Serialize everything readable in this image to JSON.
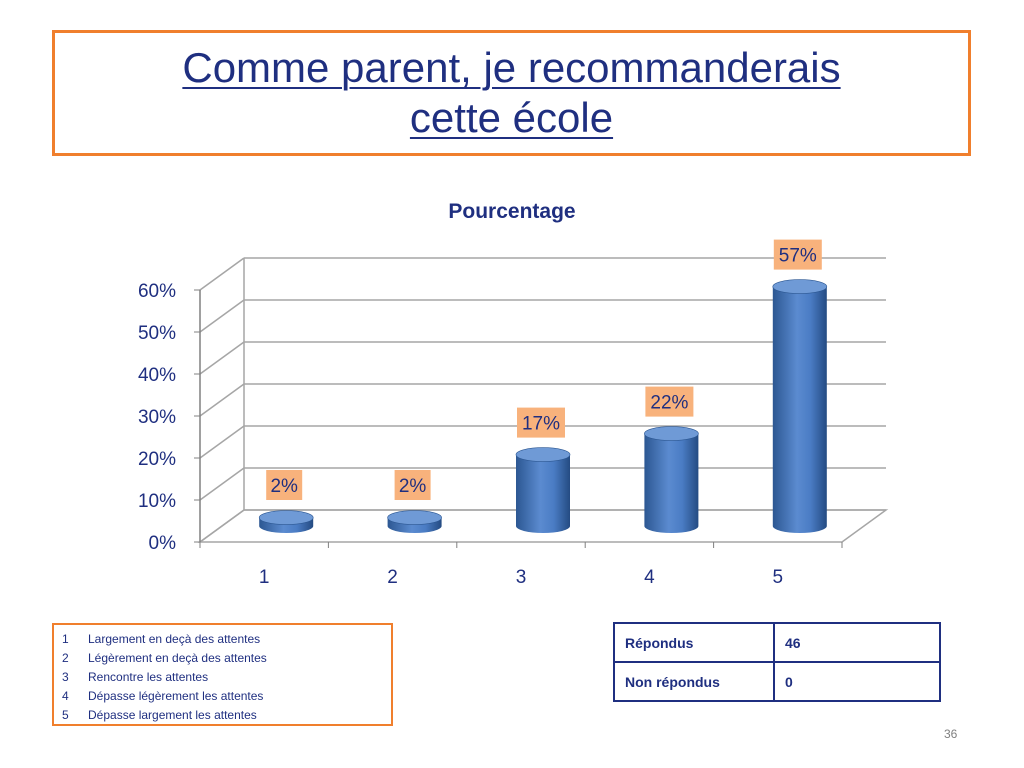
{
  "slide": {
    "title_line1": "Comme parent, je recommanderais",
    "title_line2": "cette école",
    "page_number": "36"
  },
  "chart_data": {
    "type": "bar",
    "title": "Pourcentage",
    "categories": [
      "1",
      "2",
      "3",
      "4",
      "5"
    ],
    "values": [
      2,
      2,
      17,
      22,
      57
    ],
    "data_labels": [
      "2%",
      "2%",
      "17%",
      "22%",
      "57%"
    ],
    "ylim": [
      0,
      60
    ],
    "yticks": [
      "0%",
      "10%",
      "20%",
      "30%",
      "40%",
      "50%",
      "60%"
    ],
    "grid": true,
    "bar_style": "3d-cylinder",
    "colors": {
      "bar": "#4a7cc4",
      "bar_dark": "#2c5792",
      "bar_top": "#6f9ad6",
      "label_bg": "#f8b27c",
      "grid": "#a6a6a6"
    }
  },
  "legend": {
    "items": [
      {
        "num": "1",
        "text": "Largement en deçà des attentes"
      },
      {
        "num": "2",
        "text": "Légèrement en deçà des attentes"
      },
      {
        "num": "3",
        "text": "Rencontre les attentes"
      },
      {
        "num": "4",
        "text": "Dépasse légèrement les attentes"
      },
      {
        "num": "5",
        "text": "Dépasse largement les attentes"
      }
    ]
  },
  "stats": {
    "rows": [
      {
        "label": "Répondus",
        "value": "46"
      },
      {
        "label": "Non répondus",
        "value": "0"
      }
    ]
  },
  "colors": {
    "accent_orange": "#f07f2d",
    "title_blue": "#1f2f80"
  }
}
